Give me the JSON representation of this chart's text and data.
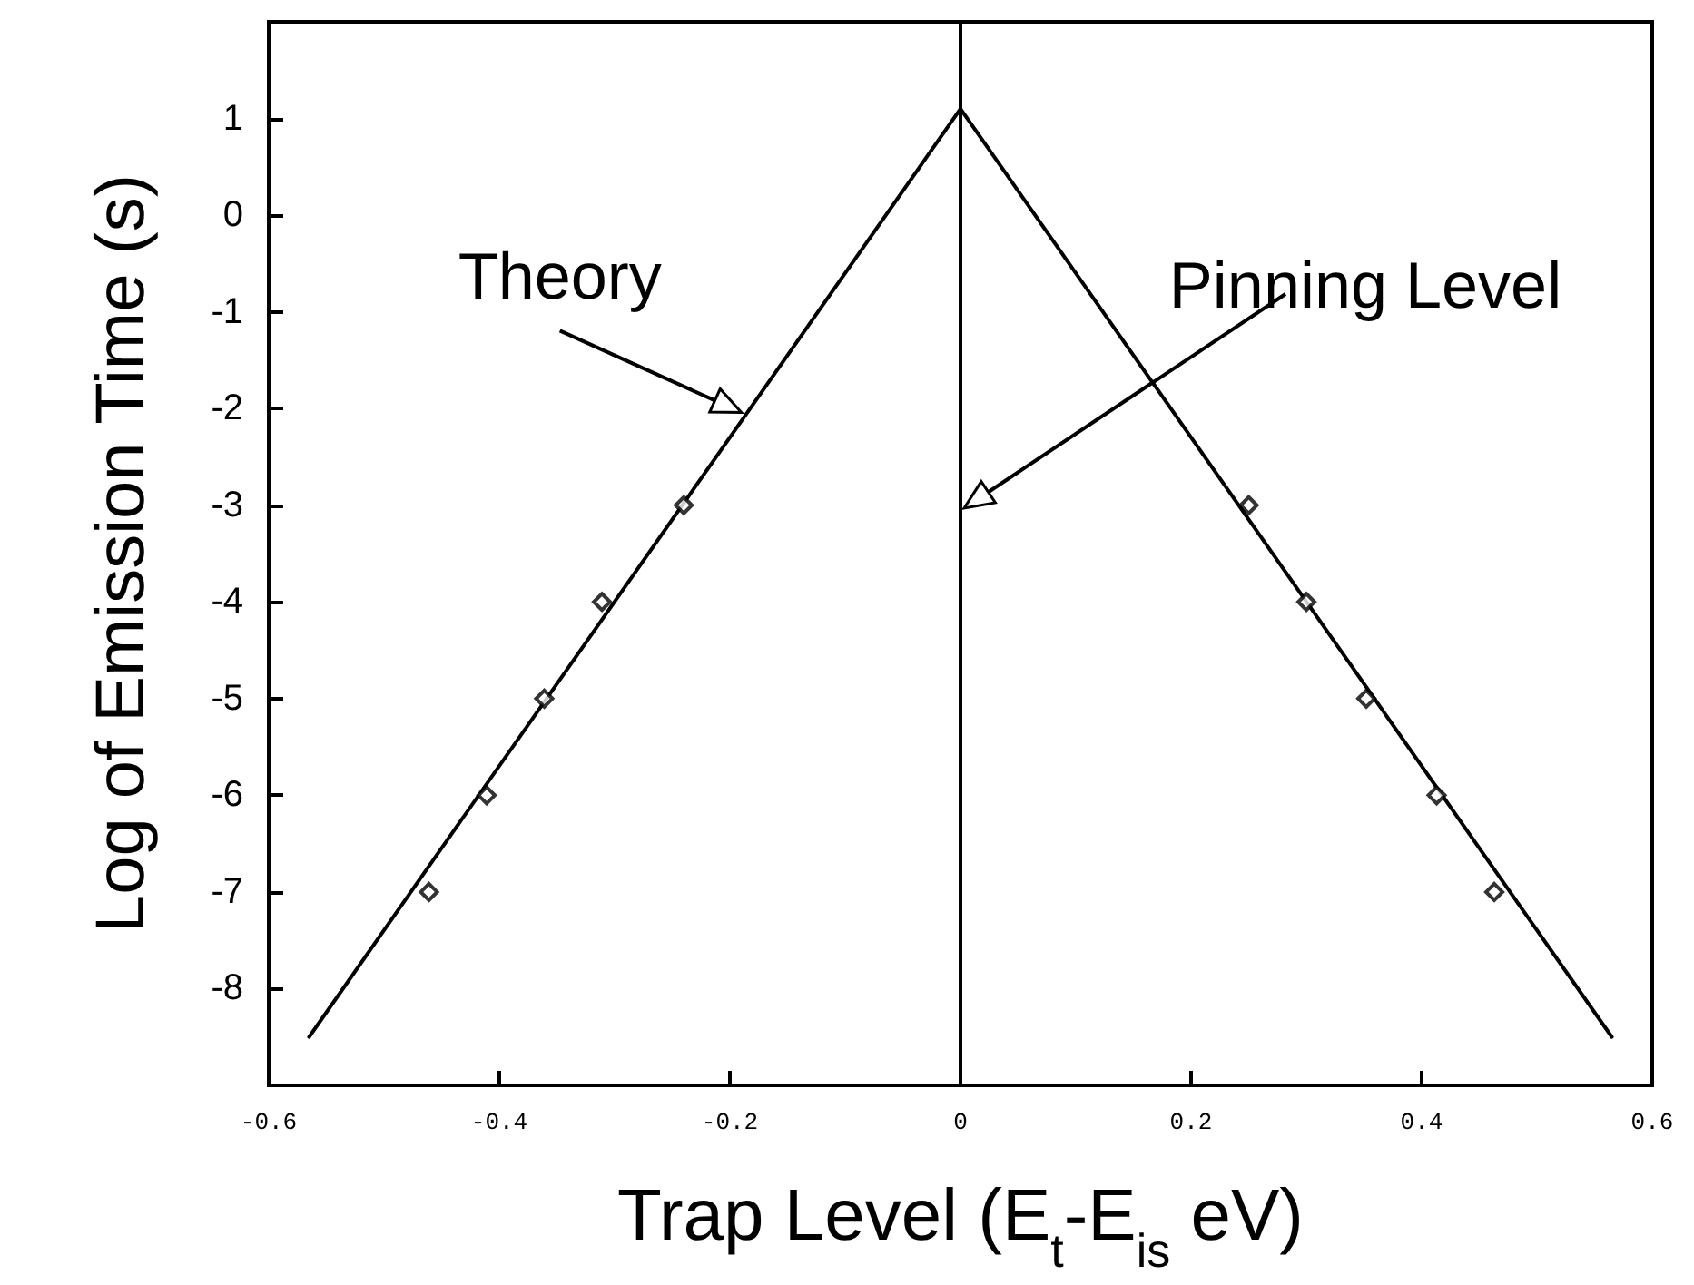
{
  "chart_data": {
    "type": "scatter",
    "xlabel": "Trap Level (E$_{t}$-E$_{is}$ eV)",
    "ylabel": "Log of Emission Time (s)",
    "xlim": [
      -0.6,
      0.6
    ],
    "xticks": [
      -0.6,
      -0.4,
      -0.2,
      0,
      0.2,
      0.4,
      0.6
    ],
    "ylim": [
      -9,
      2
    ],
    "yticks": [
      -8,
      -7,
      -6,
      -5,
      -4,
      -3,
      -2,
      -1,
      0,
      1
    ],
    "grid": false,
    "series": [
      {
        "type": "line",
        "color": "#000000",
        "marker": "none",
        "line_style": "solid",
        "x": [
          -0.565,
          0,
          0.565
        ],
        "values": [
          -8.5,
          1.1,
          -8.5
        ]
      },
      {
        "color": "#000000",
        "marker": "diamond",
        "x": [
          -0.461,
          -0.411,
          -0.361,
          -0.311,
          -0.24,
          0.25,
          0.3,
          0.352,
          0.413,
          0.463
        ],
        "values": [
          -7,
          -6,
          -5,
          -4,
          -3,
          -3,
          -4,
          -5,
          -6,
          -7
        ]
      }
    ],
    "ref_lines": [
      {
        "axis": "x",
        "value": 0,
        "color": "#000000",
        "line_style": "solid"
      }
    ],
    "annotations": [
      {
        "text": "Theory",
        "x": -0.19,
        "y": -2.04
      },
      "Pinning Level"
    ]
  }
}
